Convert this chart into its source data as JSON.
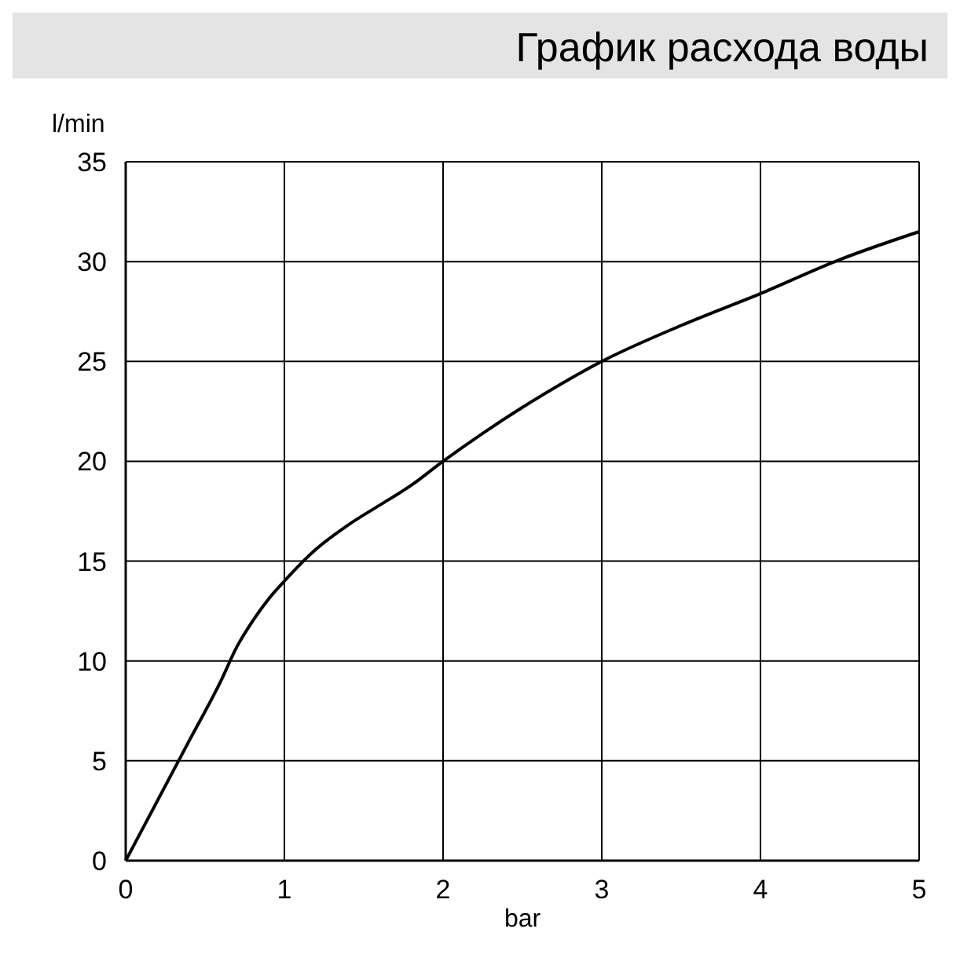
{
  "chart_data": {
    "type": "line",
    "title": "График расхода воды",
    "xlabel": "bar",
    "ylabel": "l/min",
    "x": [
      0,
      0.2,
      0.4,
      0.6,
      0.7,
      0.8,
      0.9,
      1,
      1.2,
      1.4,
      1.6,
      1.8,
      2,
      2.25,
      2.5,
      2.75,
      3,
      3.5,
      4,
      4.5,
      5
    ],
    "series": [
      {
        "color": "#000000",
        "values": [
          0,
          3,
          6,
          9,
          10.7,
          12,
          13.1,
          14,
          15.6,
          16.8,
          17.8,
          18.8,
          20,
          21.4,
          22.7,
          23.9,
          25,
          26.8,
          28.4,
          30.1,
          31.5
        ]
      }
    ],
    "xlim": [
      0,
      5
    ],
    "xticks": [
      0,
      1,
      2,
      3,
      4,
      5
    ],
    "ylim": [
      0,
      35
    ],
    "yticks": [
      0,
      5,
      10,
      15,
      20,
      25,
      30,
      35
    ],
    "grid": true,
    "marker": "none",
    "line_style": "solid"
  }
}
